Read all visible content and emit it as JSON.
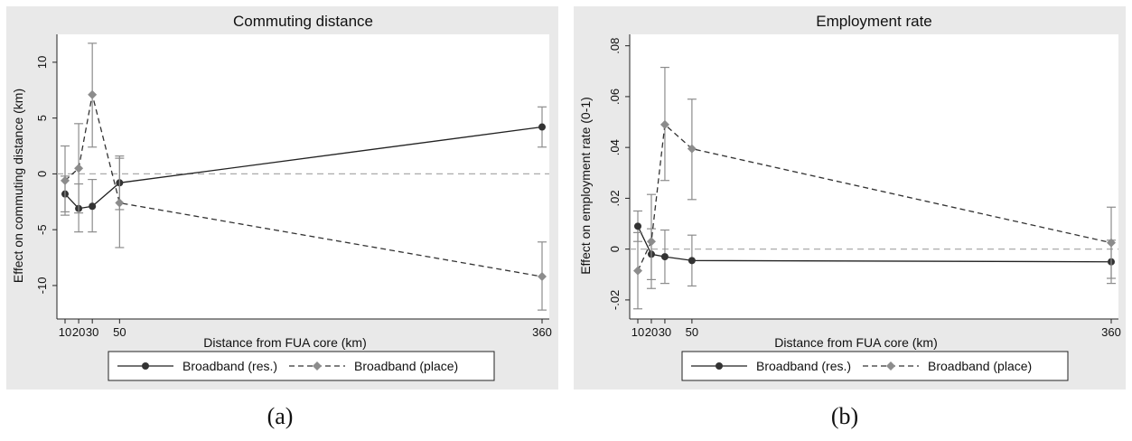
{
  "colors": {
    "background": "#e9e9e9",
    "plot_area": "#ffffff",
    "res_series": "#333333",
    "place_series": "#8c8c8c",
    "reference_line": "#aaaaaa"
  },
  "captions": {
    "a": "(a)",
    "b": "(b)"
  },
  "chart_data": [
    {
      "type": "line",
      "title": "Commuting distance",
      "xlabel": "Distance from FUA core (km)",
      "ylabel": "Effect on commuting distance (km)",
      "x_tick_labels": [
        "10",
        "20",
        "30",
        "50",
        "360"
      ],
      "x_positions": [
        10,
        20,
        30,
        50,
        360
      ],
      "y_ticks": [
        -10,
        -5,
        0,
        5,
        10
      ],
      "y_tick_labels": [
        "-10",
        "-5",
        "0",
        "5",
        "10"
      ],
      "ylim": [
        -13,
        12.5
      ],
      "reference_line": 0,
      "legend_position": "bottom",
      "series": [
        {
          "name": "Broadband (res.)",
          "style": "solid",
          "marker": "circle",
          "values": [
            -1.8,
            -3.1,
            -2.9,
            -0.8,
            4.2
          ],
          "ci_low": [
            -3.4,
            -5.2,
            -5.2,
            -3.2,
            2.4
          ],
          "ci_high": [
            -0.2,
            -0.9,
            -0.5,
            1.6,
            6.0
          ]
        },
        {
          "name": "Broadband (place)",
          "style": "dashed",
          "marker": "diamond",
          "values": [
            -0.6,
            0.5,
            7.1,
            -2.6,
            -9.2
          ],
          "ci_low": [
            -3.7,
            -3.5,
            2.4,
            -6.6,
            -12.2
          ],
          "ci_high": [
            2.5,
            4.5,
            11.7,
            1.4,
            -6.1
          ]
        }
      ]
    },
    {
      "type": "line",
      "title": "Employment rate",
      "xlabel": "Distance from FUA core (km)",
      "ylabel": "Effect on employment rate (0-1)",
      "x_tick_labels": [
        "10",
        "20",
        "30",
        "50",
        "360"
      ],
      "x_positions": [
        10,
        20,
        30,
        50,
        360
      ],
      "y_ticks": [
        -0.02,
        0,
        0.02,
        0.04,
        0.06,
        0.08
      ],
      "y_tick_labels": [
        "-.02",
        "0",
        ".02",
        ".04",
        ".06",
        ".08"
      ],
      "ylim": [
        -0.0275,
        0.0845
      ],
      "reference_line": 0,
      "legend_position": "bottom",
      "series": [
        {
          "name": "Broadband (res.)",
          "style": "solid",
          "marker": "circle",
          "values": [
            0.009,
            -0.002,
            -0.003,
            -0.0045,
            -0.005
          ],
          "ci_low": [
            0.003,
            -0.012,
            -0.0135,
            -0.0145,
            -0.0135
          ],
          "ci_high": [
            0.015,
            0.008,
            0.0075,
            0.0055,
            0.0035
          ]
        },
        {
          "name": "Broadband (place)",
          "style": "dashed",
          "marker": "diamond",
          "values": [
            -0.0085,
            0.003,
            0.049,
            0.0395,
            0.0025
          ],
          "ci_low": [
            -0.0235,
            -0.0155,
            0.027,
            0.0195,
            -0.0115
          ],
          "ci_high": [
            0.0065,
            0.0215,
            0.0715,
            0.059,
            0.0165
          ]
        }
      ]
    }
  ]
}
